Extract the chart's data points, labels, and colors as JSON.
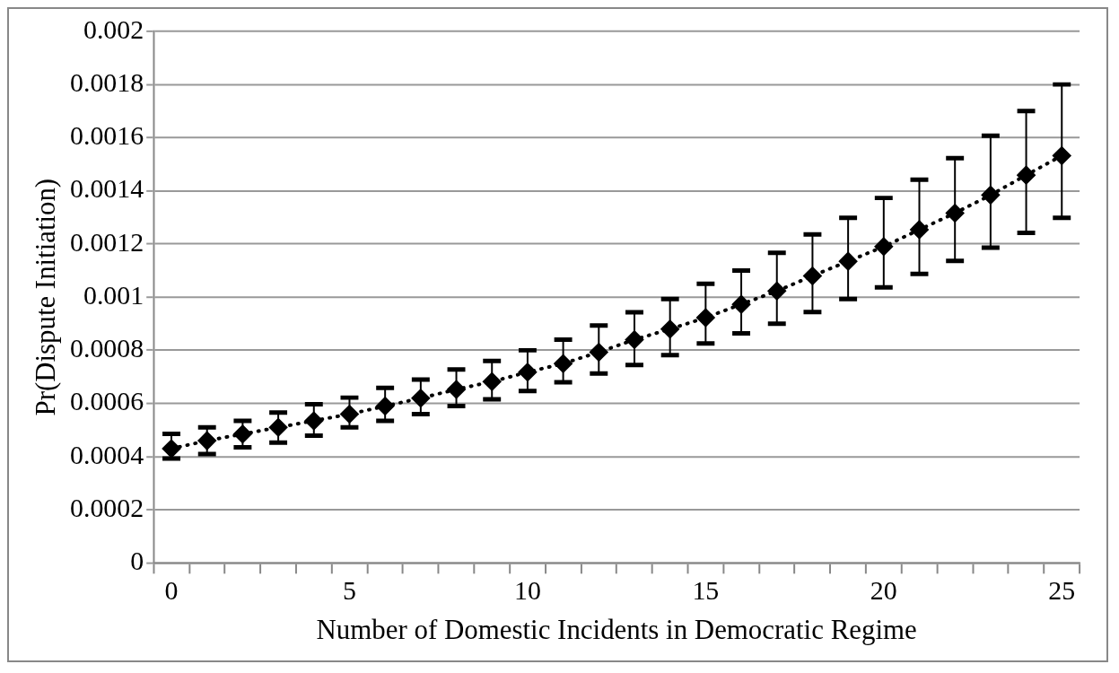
{
  "chart_data": {
    "type": "line",
    "xlabel": "Number of Domestic Incidents in Democratic Regime",
    "ylabel": "Pr(Dispute Initiation)",
    "categories": [
      "0",
      null,
      null,
      null,
      null,
      "5",
      null,
      null,
      null,
      null,
      "10",
      null,
      null,
      null,
      null,
      "15",
      null,
      null,
      null,
      null,
      "20",
      null,
      null,
      null,
      null,
      "25"
    ],
    "series": [
      {
        "color": "#000000",
        "values": [
          0.00043,
          0.00046,
          0.000485,
          0.00051,
          0.000535,
          0.00056,
          0.00059,
          0.00062,
          0.000653,
          0.000682,
          0.000718,
          0.00075,
          0.000793,
          0.00084,
          0.00088,
          0.000923,
          0.000973,
          0.001023,
          0.00108,
          0.001135,
          0.00119,
          0.001254,
          0.001316,
          0.001384,
          0.001459,
          0.001532
        ],
        "errors": [
          [
            0.000393,
            0.000486
          ],
          [
            0.00041,
            0.00051
          ],
          [
            0.000435,
            0.000535
          ],
          [
            0.000453,
            0.000566
          ],
          [
            0.000479,
            0.000597
          ],
          [
            0.00051,
            0.000622
          ],
          [
            0.000535,
            0.000659
          ],
          [
            0.00056,
            0.00069
          ],
          [
            0.00059,
            0.000728
          ],
          [
            0.000616,
            0.00076
          ],
          [
            0.000647,
            0.0008
          ],
          [
            0.00068,
            0.00084
          ],
          [
            0.000713,
            0.000893
          ],
          [
            0.000745,
            0.000943
          ],
          [
            0.000782,
            0.000993
          ],
          [
            0.000826,
            0.00105
          ],
          [
            0.000864,
            0.0011
          ],
          [
            0.0009,
            0.001167
          ],
          [
            0.000944,
            0.001236
          ],
          [
            0.000993,
            0.001298
          ],
          [
            0.001037,
            0.001373
          ],
          [
            0.001087,
            0.001442
          ],
          [
            0.001136,
            0.001523
          ],
          [
            0.001186,
            0.001607
          ],
          [
            0.001242,
            0.0017
          ],
          [
            0.001298,
            0.0018
          ]
        ]
      }
    ],
    "ylim": [
      0,
      0.002
    ],
    "yticks": [
      0,
      0.0002,
      0.0004,
      0.0006,
      0.0008,
      0.001,
      0.0012,
      0.0014,
      0.0016,
      0.0018,
      0.002
    ],
    "grid": "y",
    "marker": "diamond",
    "line_style": "dotted",
    "legend": false
  }
}
